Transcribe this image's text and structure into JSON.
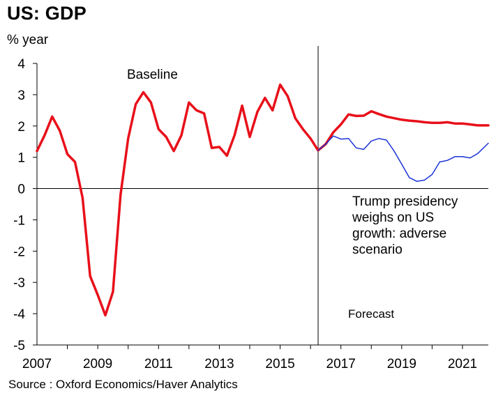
{
  "chart_data": {
    "type": "line",
    "title": "US: GDP",
    "ylabel": "% year",
    "xlabel": "",
    "ylim": [
      -5,
      4
    ],
    "xlim": [
      2007,
      2021.85
    ],
    "y_ticks": [
      "4",
      "3",
      "2",
      "1",
      "0",
      "-1",
      "-2",
      "-3",
      "-4",
      "-5"
    ],
    "x_ticks": [
      "2007",
      "2009",
      "2011",
      "2013",
      "2015",
      "2017",
      "2019",
      "2021"
    ],
    "forecast_start": 2016.25,
    "series": [
      {
        "name": "Baseline",
        "color": "#e8101a",
        "points": [
          [
            2007.0,
            1.2
          ],
          [
            2007.25,
            1.7
          ],
          [
            2007.5,
            2.3
          ],
          [
            2007.75,
            1.85
          ],
          [
            2008.0,
            1.1
          ],
          [
            2008.25,
            0.85
          ],
          [
            2008.5,
            -0.3
          ],
          [
            2008.75,
            -2.8
          ],
          [
            2009.0,
            -3.4
          ],
          [
            2009.25,
            -4.05
          ],
          [
            2009.5,
            -3.3
          ],
          [
            2009.75,
            -0.2
          ],
          [
            2010.0,
            1.6
          ],
          [
            2010.25,
            2.7
          ],
          [
            2010.5,
            3.08
          ],
          [
            2010.75,
            2.75
          ],
          [
            2011.0,
            1.9
          ],
          [
            2011.25,
            1.65
          ],
          [
            2011.5,
            1.2
          ],
          [
            2011.75,
            1.7
          ],
          [
            2012.0,
            2.75
          ],
          [
            2012.25,
            2.5
          ],
          [
            2012.5,
            2.4
          ],
          [
            2012.75,
            1.3
          ],
          [
            2013.0,
            1.33
          ],
          [
            2013.25,
            1.05
          ],
          [
            2013.5,
            1.7
          ],
          [
            2013.75,
            2.65
          ],
          [
            2014.0,
            1.65
          ],
          [
            2014.25,
            2.45
          ],
          [
            2014.5,
            2.9
          ],
          [
            2014.75,
            2.5
          ],
          [
            2015.0,
            3.32
          ],
          [
            2015.25,
            2.95
          ],
          [
            2015.5,
            2.25
          ],
          [
            2015.75,
            1.9
          ],
          [
            2016.0,
            1.6
          ],
          [
            2016.25,
            1.22
          ],
          [
            2016.5,
            1.42
          ],
          [
            2016.75,
            1.8
          ],
          [
            2017.0,
            2.05
          ],
          [
            2017.25,
            2.37
          ],
          [
            2017.5,
            2.32
          ],
          [
            2017.75,
            2.33
          ],
          [
            2018.0,
            2.47
          ],
          [
            2018.25,
            2.38
          ],
          [
            2018.5,
            2.3
          ],
          [
            2018.75,
            2.25
          ],
          [
            2019.0,
            2.2
          ],
          [
            2019.25,
            2.17
          ],
          [
            2019.5,
            2.15
          ],
          [
            2019.75,
            2.12
          ],
          [
            2020.0,
            2.1
          ],
          [
            2020.25,
            2.1
          ],
          [
            2020.5,
            2.12
          ],
          [
            2020.75,
            2.08
          ],
          [
            2021.0,
            2.08
          ],
          [
            2021.25,
            2.05
          ],
          [
            2021.5,
            2.02
          ],
          [
            2021.85,
            2.02
          ]
        ]
      },
      {
        "name": "Trump presidency weighs on US growth: adverse scenario",
        "color": "#1a33d6",
        "points": [
          [
            2016.25,
            1.22
          ],
          [
            2016.5,
            1.42
          ],
          [
            2016.75,
            1.68
          ],
          [
            2017.0,
            1.58
          ],
          [
            2017.25,
            1.6
          ],
          [
            2017.5,
            1.3
          ],
          [
            2017.75,
            1.25
          ],
          [
            2018.0,
            1.52
          ],
          [
            2018.25,
            1.6
          ],
          [
            2018.5,
            1.55
          ],
          [
            2018.75,
            1.2
          ],
          [
            2019.0,
            0.78
          ],
          [
            2019.25,
            0.35
          ],
          [
            2019.5,
            0.23
          ],
          [
            2019.75,
            0.27
          ],
          [
            2020.0,
            0.45
          ],
          [
            2020.25,
            0.85
          ],
          [
            2020.5,
            0.9
          ],
          [
            2020.75,
            1.02
          ],
          [
            2021.0,
            1.02
          ],
          [
            2021.25,
            0.98
          ],
          [
            2021.5,
            1.12
          ],
          [
            2021.85,
            1.45
          ]
        ]
      }
    ],
    "annotations": {
      "baseline": "Baseline",
      "adverse": [
        "Trump presidency",
        "weighs on US",
        "growth: adverse",
        "scenario"
      ],
      "forecast": "Forecast"
    },
    "source": "Source : Oxford Economics/Haver Analytics",
    "grid": false,
    "legend": "none"
  }
}
